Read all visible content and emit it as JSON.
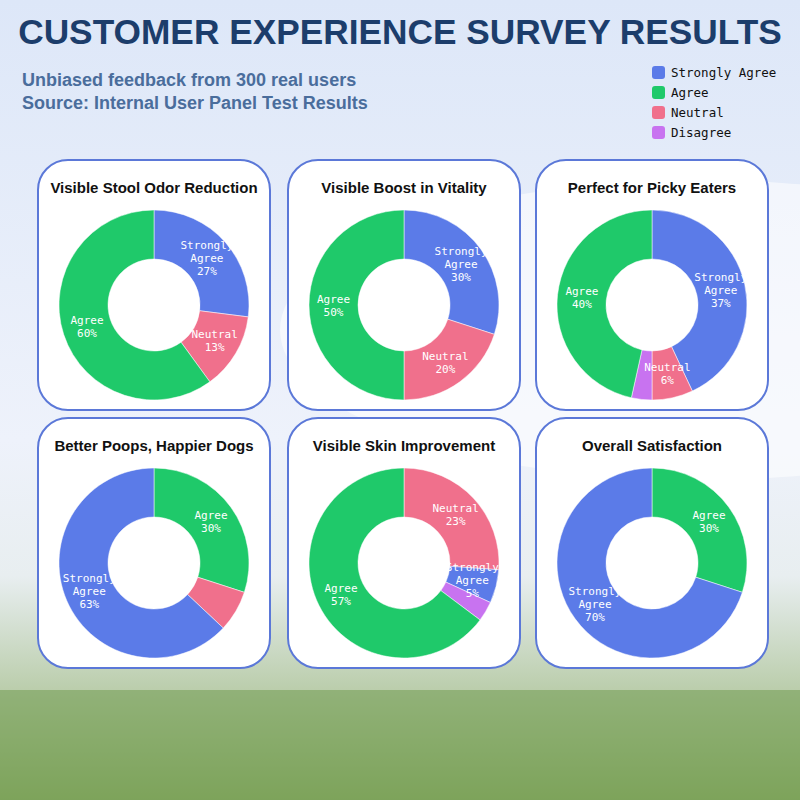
{
  "header": {
    "title": "CUSTOMER EXPERIENCE SURVEY RESULTS",
    "subtitle": [
      "Unbiased feedback from 300 real users",
      "Source: Internal User Panel Test Results"
    ]
  },
  "legend": [
    {
      "name": "Strongly Agree",
      "color": "#5b7be8"
    },
    {
      "name": "Agree",
      "color": "#1fc96a"
    },
    {
      "name": "Neutral",
      "color": "#f0708c"
    },
    {
      "name": "Disagree",
      "color": "#c873f0"
    }
  ],
  "chart_data": [
    {
      "type": "donut",
      "title": "Visible Stool Odor Reduction",
      "categories": [
        "Strongly Agree",
        "Neutral",
        "Agree"
      ],
      "values": [
        27,
        13,
        60
      ],
      "value_labels": [
        "27%",
        "13%",
        "60%"
      ],
      "colors": [
        "#5b7be8",
        "#f0708c",
        "#1fc96a"
      ],
      "data_labels": true
    },
    {
      "type": "donut",
      "title": "Visible Boost in Vitality",
      "categories": [
        "Strongly Agree",
        "Neutral",
        "Agree"
      ],
      "values": [
        30,
        20,
        50
      ],
      "value_labels": [
        "30%",
        "20%",
        "50%"
      ],
      "colors": [
        "#5b7be8",
        "#f0708c",
        "#1fc96a"
      ],
      "data_labels": true
    },
    {
      "type": "donut",
      "title": "Perfect for Picky Eaters",
      "categories": [
        "Strongly Agree",
        "Neutral",
        "Disagree",
        "Agree"
      ],
      "values": [
        37,
        6,
        3,
        40
      ],
      "value_labels": [
        "37%",
        "6%",
        null,
        "40%"
      ],
      "colors": [
        "#5b7be8",
        "#f0708c",
        "#c873f0",
        "#1fc96a"
      ],
      "data_labels": true
    },
    {
      "type": "donut",
      "title": "Better Poops, Happier Dogs",
      "categories": [
        "Agree",
        "Neutral",
        "Strongly Agree"
      ],
      "values": [
        30,
        7,
        63
      ],
      "value_labels": [
        "30%",
        null,
        "63%"
      ],
      "colors": [
        "#1fc96a",
        "#f0708c",
        "#5b7be8"
      ],
      "data_labels": true
    },
    {
      "type": "donut",
      "title": "Visible Skin Improvement",
      "categories": [
        "Neutral",
        "Strongly Agree",
        "Disagree",
        "Agree"
      ],
      "values": [
        23,
        5,
        3,
        57
      ],
      "value_labels": [
        "23%",
        "5%",
        null,
        "57%"
      ],
      "colors": [
        "#f0708c",
        "#5b7be8",
        "#c873f0",
        "#1fc96a"
      ],
      "data_labels": true
    },
    {
      "type": "donut",
      "title": "Overall Satisfaction",
      "categories": [
        "Agree",
        "Strongly Agree"
      ],
      "values": [
        30,
        70
      ],
      "value_labels": [
        "30%",
        "70%"
      ],
      "colors": [
        "#1fc96a",
        "#5b7be8"
      ],
      "data_labels": true
    }
  ]
}
